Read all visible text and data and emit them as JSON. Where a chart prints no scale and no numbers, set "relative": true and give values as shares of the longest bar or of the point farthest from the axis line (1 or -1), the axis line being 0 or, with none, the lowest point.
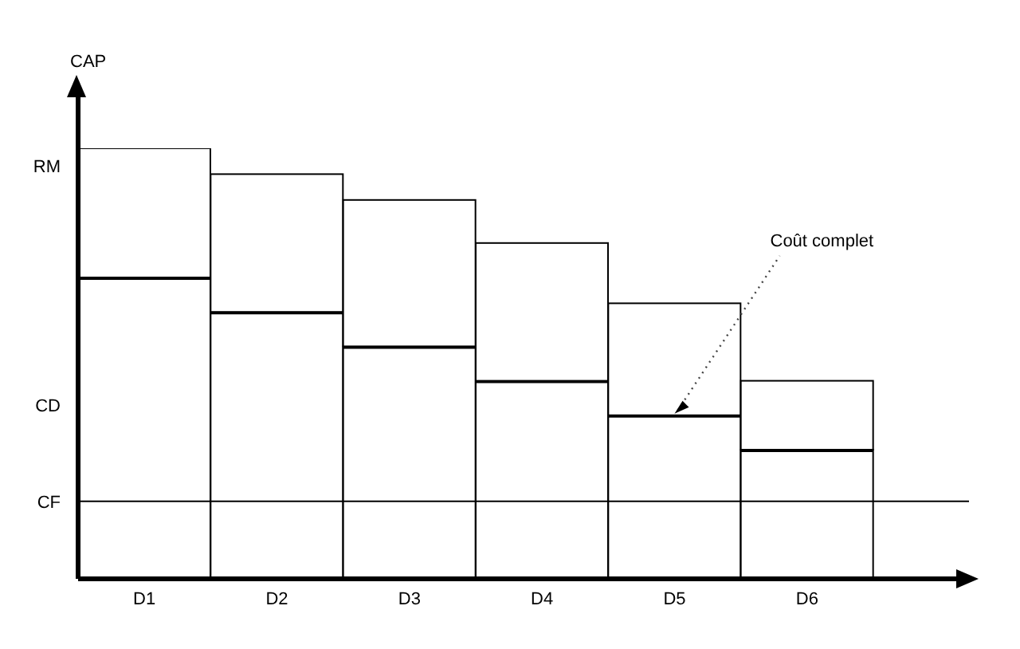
{
  "chart_data": {
    "type": "bar",
    "relative": true,
    "stacked": true,
    "ylabel": "CAP",
    "categories": [
      "D1",
      "D2",
      "D3",
      "D4",
      "D5",
      "D6"
    ],
    "series": [
      {
        "color": "#ffffff",
        "values": [
          0.7,
          0.62,
          0.54,
          0.46,
          0.38,
          0.3
        ]
      },
      {
        "color": "#ffffff",
        "values": [
          0.3,
          0.32,
          0.34,
          0.32,
          0.26,
          0.16
        ]
      }
    ],
    "ref_lines": [
      {
        "axis": "y",
        "value": 0.18,
        "label": "CF",
        "color": "#000000"
      }
    ],
    "annotations": [
      "RM",
      "CD",
      {
        "text": "Coût complet",
        "x": "D5",
        "y": 0.38
      }
    ],
    "grid": false
  }
}
